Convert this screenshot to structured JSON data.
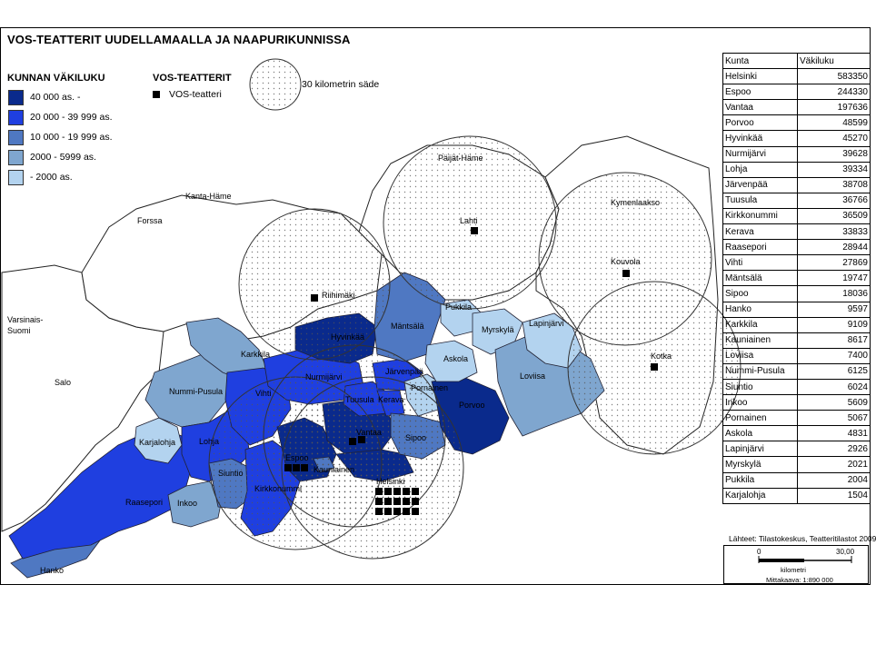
{
  "title": "VOS-TEATTERIT UUDELLAMAALLA JA NAAPURIKUNNISSA",
  "legend": {
    "population_title": "KUNNAN VÄKILUKU",
    "classes": [
      {
        "label": "40 000 as. -",
        "color": "#0a2a8c"
      },
      {
        "label": "20 000 - 39 999 as.",
        "color": "#1f3fe0"
      },
      {
        "label": "10 000 - 19 999 as.",
        "color": "#4f78c2"
      },
      {
        "label": "2000 - 5999 as.",
        "color": "#7fa6cf"
      },
      {
        "label": "- 2000 as.",
        "color": "#b3d3ef"
      }
    ],
    "vos_title": "VOS-TEATTERIT",
    "vos_label": "VOS-teatteri",
    "radius_label": "30 kilometrin säde"
  },
  "map": {
    "region_labels": [
      "Kanta-Häme",
      "Forssa",
      "Varsinais-",
      "Suomi",
      "Salo",
      "Riihimäki",
      "Päijät-Häme",
      "Lahti",
      "Kymenlaakso",
      "Kouvola",
      "Kotka",
      "Hyvinkää",
      "Mäntsälä",
      "Pukkila",
      "Myrskylä",
      "Lapinjärvi",
      "Karkkila",
      "Nurmijärvi",
      "Järvenpää",
      "Askola",
      "Loviisa",
      "Nummi-Pusula",
      "Vihti",
      "Tuusula",
      "Kerava",
      "Pornainen",
      "Porvoo",
      "Karjalohja",
      "Lohja",
      "Vantaa",
      "Sipoo",
      "Siuntio",
      "Espoo",
      "Kauniainen",
      "Kirkkonummi",
      "Helsinki",
      "Raasepori",
      "Inkoo",
      "Hanko"
    ]
  },
  "table": {
    "headers": [
      "Kunta",
      "Väkiluku"
    ],
    "rows": [
      [
        "Helsinki",
        "583350"
      ],
      [
        "Espoo",
        "244330"
      ],
      [
        "Vantaa",
        "197636"
      ],
      [
        "Porvoo",
        "48599"
      ],
      [
        "Hyvinkää",
        "45270"
      ],
      [
        "Nurmijärvi",
        "39628"
      ],
      [
        "Lohja",
        "39334"
      ],
      [
        "Järvenpää",
        "38708"
      ],
      [
        "Tuusula",
        "36766"
      ],
      [
        "Kirkkonummi",
        "36509"
      ],
      [
        "Kerava",
        "33833"
      ],
      [
        "Raasepori",
        "28944"
      ],
      [
        "Vihti",
        "27869"
      ],
      [
        "Mäntsälä",
        "19747"
      ],
      [
        "Sipoo",
        "18036"
      ],
      [
        "Hanko",
        "9597"
      ],
      [
        "Karkkila",
        "9109"
      ],
      [
        "Kauniainen",
        "8617"
      ],
      [
        "Loviisa",
        "7400"
      ],
      [
        "Nummi-Pusula",
        "6125"
      ],
      [
        "Siuntio",
        "6024"
      ],
      [
        "Inkoo",
        "5609"
      ],
      [
        "Pornainen",
        "5067"
      ],
      [
        "Askola",
        "4831"
      ],
      [
        "Lapinjärvi",
        "2926"
      ],
      [
        "Myrskylä",
        "2021"
      ],
      [
        "Pukkila",
        "2004"
      ],
      [
        "Karjalohja",
        "1504"
      ]
    ]
  },
  "source": "Lähteet: Tilastokeskus, Teatteritilastot 2009",
  "scale": {
    "start": "0",
    "end": "30,00",
    "unit": "kilometri",
    "ratio": "Mittakaava:  1:890 000"
  }
}
